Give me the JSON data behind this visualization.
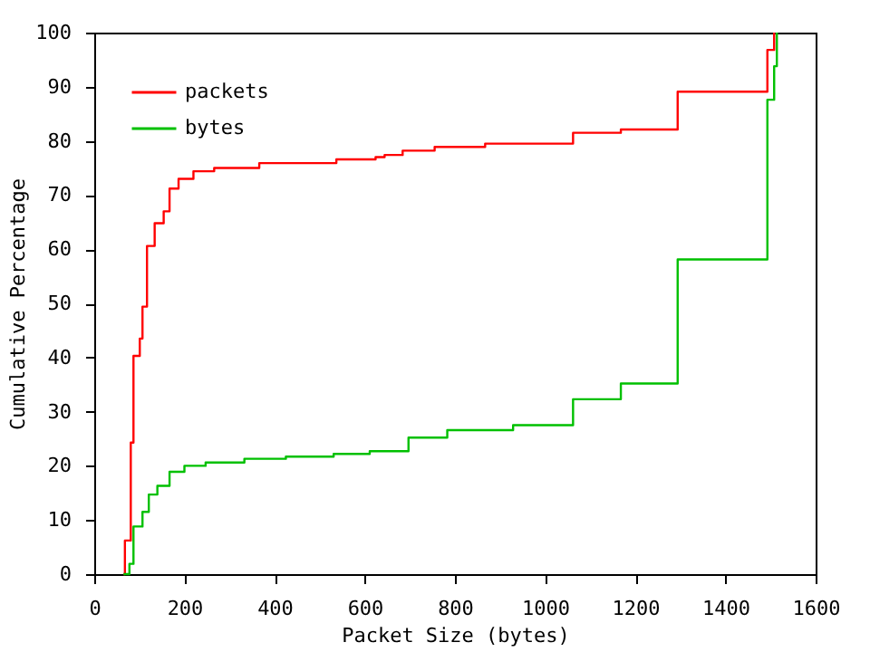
{
  "chart_data": {
    "type": "step",
    "xlabel": "Packet Size (bytes)",
    "ylabel": "Cumulative Percentage",
    "xlim": [
      0,
      1600
    ],
    "xticks": [
      0,
      200,
      400,
      600,
      800,
      1000,
      1200,
      1400,
      1600
    ],
    "ylim": [
      0,
      100
    ],
    "yticks": [
      0,
      10,
      20,
      30,
      40,
      50,
      60,
      70,
      80,
      90,
      100
    ],
    "grid": false,
    "legend": "top left",
    "line_style": "solid",
    "marker": "none",
    "series": [
      {
        "name": "packets",
        "color": "#ff0000",
        "x": [
          65,
          68,
          81,
          87,
          101,
          107,
          117,
          134,
          154,
          167,
          187,
          220,
          266,
          366,
          537,
          624,
          644,
          684,
          755,
          867,
          1062,
          1168,
          1294,
          1493,
          1508
        ],
        "values": [
          0,
          6.2,
          24.3,
          40.3,
          43.5,
          49.4,
          60.6,
          64.8,
          67,
          71.2,
          73,
          74.4,
          75,
          75.9,
          76.6,
          77,
          77.4,
          78.2,
          78.9,
          79.5,
          81.5,
          82.1,
          89.1,
          96.8,
          100
        ]
      },
      {
        "name": "bytes",
        "color": "#00c000",
        "x": [
          65,
          78,
          87,
          107,
          121,
          140,
          167,
          200,
          247,
          333,
          425,
          531,
          611,
          697,
          783,
          929,
          1062,
          1168,
          1294,
          1493,
          1508,
          1514
        ],
        "values": [
          0,
          1.9,
          8.8,
          11.5,
          14.7,
          16.3,
          18.9,
          20,
          20.6,
          21.3,
          21.7,
          22.2,
          22.7,
          25.2,
          26.6,
          27.5,
          32.3,
          35.2,
          58.1,
          87.6,
          93.8,
          100
        ]
      }
    ]
  }
}
